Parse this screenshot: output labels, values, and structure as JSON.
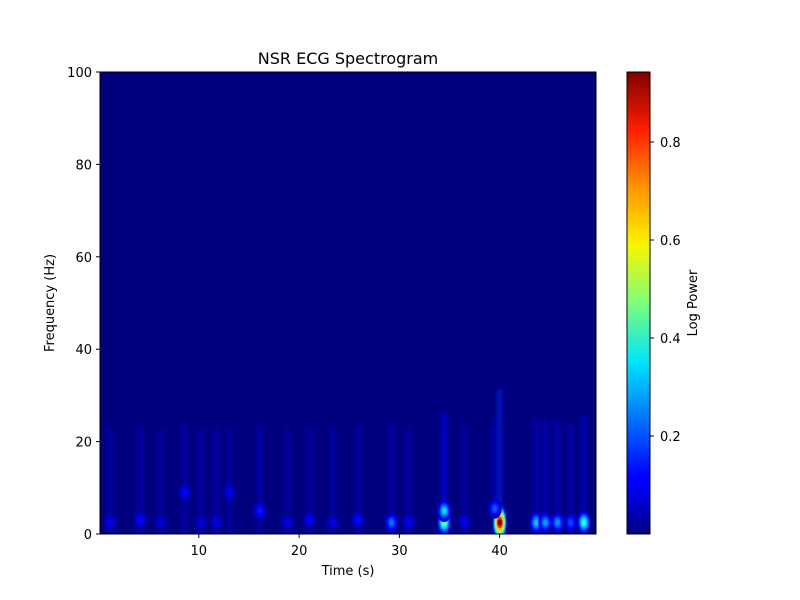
{
  "chart_data": {
    "type": "heatmap",
    "title": "NSR ECG Spectrogram",
    "xlabel": "Time (s)",
    "ylabel": "Frequency (Hz)",
    "xlim": [
      0.5,
      49.5
    ],
    "ylim": [
      0,
      100
    ],
    "xticks": [
      "10",
      "20",
      "30",
      "40"
    ],
    "yticks": [
      "0",
      "20",
      "40",
      "60",
      "80",
      "100"
    ],
    "colormap": "jet",
    "grid": false,
    "colorbar": {
      "label": "Log Power",
      "range": [
        0,
        0.94
      ],
      "ticks": [
        "0.2",
        "0.4",
        "0.6",
        "0.8"
      ]
    },
    "background_value": 0.01,
    "hotspots": [
      {
        "t": 40.0,
        "f": 2.5,
        "value": 0.94
      },
      {
        "t": 34.5,
        "f": 2.5,
        "value": 0.45
      },
      {
        "t": 34.5,
        "f": 5.0,
        "value": 0.32
      },
      {
        "t": 48.3,
        "f": 2.5,
        "value": 0.38
      },
      {
        "t": 43.6,
        "f": 2.5,
        "value": 0.3
      },
      {
        "t": 44.5,
        "f": 2.5,
        "value": 0.26
      },
      {
        "t": 45.7,
        "f": 2.5,
        "value": 0.25
      },
      {
        "t": 29.3,
        "f": 2.5,
        "value": 0.22
      },
      {
        "t": 39.5,
        "f": 5.5,
        "value": 0.2
      },
      {
        "t": 47.0,
        "f": 2.5,
        "value": 0.18
      },
      {
        "t": 8.9,
        "f": 9.0,
        "value": 0.12
      },
      {
        "t": 16.3,
        "f": 5.0,
        "value": 0.14
      },
      {
        "t": 26.0,
        "f": 3.0,
        "value": 0.12
      },
      {
        "t": 4.5,
        "f": 3.0,
        "value": 0.12
      },
      {
        "t": 13.3,
        "f": 9.0,
        "value": 0.1
      },
      {
        "t": 21.2,
        "f": 3.0,
        "value": 0.11
      },
      {
        "t": 1.5,
        "f": 2.5,
        "value": 0.1
      },
      {
        "t": 31.0,
        "f": 2.5,
        "value": 0.1
      },
      {
        "t": 36.5,
        "f": 2.5,
        "value": 0.1
      },
      {
        "t": 12.0,
        "f": 2.5,
        "value": 0.09
      },
      {
        "t": 23.5,
        "f": 2.5,
        "value": 0.09
      },
      {
        "t": 19.0,
        "f": 2.5,
        "value": 0.09
      },
      {
        "t": 6.5,
        "f": 2.5,
        "value": 0.08
      },
      {
        "t": 10.5,
        "f": 2.5,
        "value": 0.08
      }
    ]
  }
}
